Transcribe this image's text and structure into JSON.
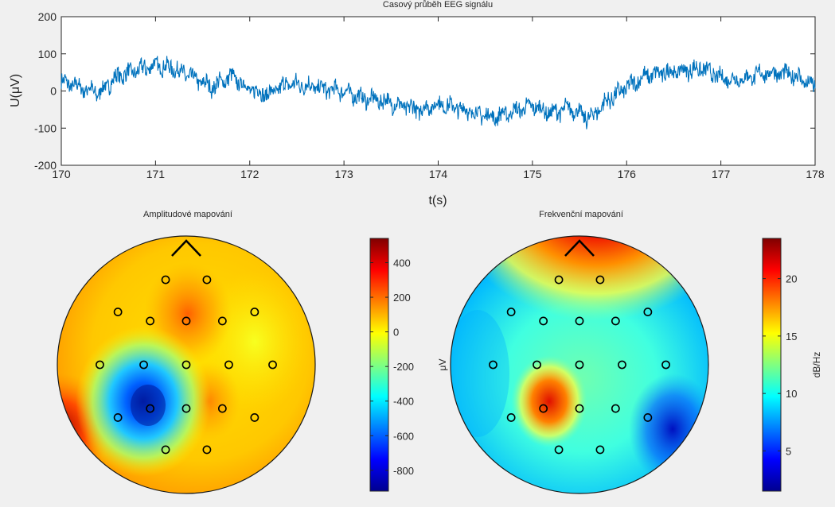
{
  "window": {
    "background": "#f0f0f0"
  },
  "chart_data": [
    {
      "type": "line",
      "title": "Casový průběh EEG signálu",
      "xlabel": "t(s)",
      "ylabel": "U(μV)",
      "xlim": [
        170,
        178
      ],
      "ylim": [
        -200,
        200
      ],
      "xticks": [
        170,
        171,
        172,
        173,
        174,
        175,
        176,
        177,
        178
      ],
      "yticks": [
        -200,
        -100,
        0,
        100,
        200
      ],
      "line_color": "#0072bd",
      "grid": false,
      "series": [
        {
          "x": [
            170,
            170.2,
            170.4,
            170.6,
            170.8,
            171.0,
            171.2,
            171.4,
            171.6,
            171.8,
            172.0,
            172.2,
            172.4,
            172.6,
            172.8,
            173.0,
            173.2,
            173.4,
            173.6,
            173.8,
            174.0,
            174.2,
            174.4,
            174.6,
            174.8,
            175.0,
            175.2,
            175.4,
            175.6,
            175.8,
            176.0,
            176.2,
            176.4,
            176.6,
            176.8,
            177.0,
            177.2,
            177.4,
            177.6,
            177.8,
            178.0
          ],
          "values": [
            25,
            10,
            -5,
            40,
            55,
            70,
            60,
            35,
            10,
            40,
            5,
            -10,
            20,
            15,
            5,
            0,
            -20,
            -25,
            -40,
            -50,
            -35,
            -45,
            -60,
            -70,
            -55,
            -40,
            -60,
            -45,
            -75,
            -25,
            10,
            40,
            50,
            55,
            60,
            35,
            30,
            45,
            50,
            40,
            10
          ]
        }
      ]
    },
    {
      "type": "heatmap",
      "title": "Amplitudové mapování",
      "colorbar": {
        "ticks": [
          400,
          200,
          0,
          -200,
          -400,
          -600,
          -800
        ],
        "range": [
          -920,
          540
        ],
        "label": "μV"
      },
      "colormap": "jet",
      "electrodes_count": 19
    },
    {
      "type": "heatmap",
      "title": "Frekvenční mapování",
      "colorbar": {
        "ticks": [
          20,
          15,
          10,
          5
        ],
        "range": [
          1.5,
          23.5
        ],
        "label": "dB/Hz"
      },
      "colormap": "jet",
      "electrodes_count": 19
    }
  ]
}
